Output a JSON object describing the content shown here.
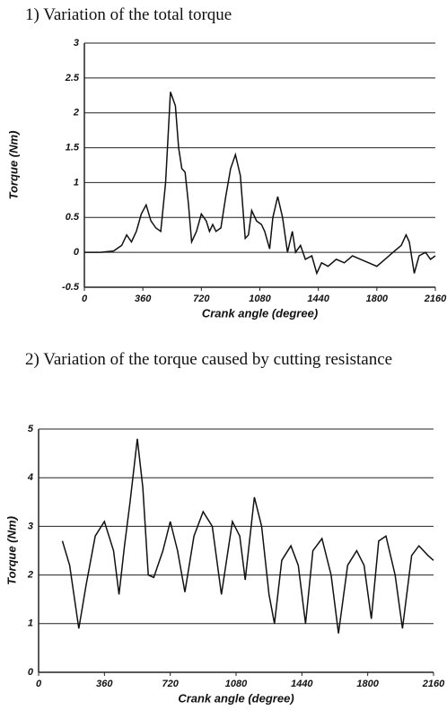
{
  "chart_data": [
    {
      "type": "line",
      "title": "1) Variation of the total torque",
      "x_label": "Crank angle (degree)",
      "y_label": "Torque (Nm)",
      "color": "#111111",
      "grid": true,
      "xlim": [
        0,
        2160
      ],
      "xticks": [
        0,
        360,
        720,
        1080,
        1440,
        1800,
        2160
      ],
      "ylim": [
        -0.5,
        3
      ],
      "yticks": [
        -0.5,
        0,
        0.5,
        1,
        1.5,
        2,
        2.5,
        3
      ],
      "x": [
        0,
        100,
        180,
        230,
        260,
        290,
        320,
        350,
        380,
        410,
        440,
        470,
        500,
        530,
        560,
        580,
        600,
        620,
        640,
        660,
        690,
        720,
        750,
        770,
        790,
        810,
        840,
        870,
        900,
        930,
        960,
        990,
        1010,
        1030,
        1060,
        1090,
        1110,
        1140,
        1160,
        1190,
        1220,
        1250,
        1280,
        1300,
        1330,
        1360,
        1400,
        1430,
        1460,
        1500,
        1550,
        1600,
        1650,
        1700,
        1750,
        1800,
        1850,
        1900,
        1950,
        1980,
        2000,
        2030,
        2060,
        2100,
        2130,
        2160
      ],
      "values": [
        0,
        0,
        0.02,
        0.1,
        0.25,
        0.15,
        0.3,
        0.55,
        0.68,
        0.45,
        0.35,
        0.3,
        1.0,
        2.3,
        2.1,
        1.5,
        1.2,
        1.15,
        0.7,
        0.15,
        0.3,
        0.55,
        0.45,
        0.3,
        0.4,
        0.3,
        0.35,
        0.8,
        1.2,
        1.4,
        1.1,
        0.2,
        0.25,
        0.6,
        0.45,
        0.4,
        0.3,
        0.05,
        0.5,
        0.8,
        0.5,
        0,
        0.3,
        0,
        0.1,
        -0.1,
        -0.05,
        -0.3,
        -0.15,
        -0.2,
        -0.1,
        -0.15,
        -0.05,
        -0.1,
        -0.15,
        -0.2,
        -0.1,
        0,
        0.1,
        0.25,
        0.15,
        -0.3,
        -0.05,
        0,
        -0.1,
        -0.05
      ]
    },
    {
      "type": "line",
      "title": "2) Variation of the torque caused by cutting resistance",
      "x_label": "Crank angle (degree)",
      "y_label": "Torque (Nm)",
      "color": "#111111",
      "grid": true,
      "xlim": [
        0,
        2160
      ],
      "xticks": [
        0,
        360,
        720,
        1080,
        1440,
        1800,
        2160
      ],
      "ylim": [
        0,
        5
      ],
      "yticks": [
        0,
        1,
        2,
        3,
        4,
        5
      ],
      "x": [
        130,
        170,
        220,
        260,
        310,
        360,
        410,
        440,
        470,
        500,
        540,
        570,
        600,
        630,
        680,
        720,
        760,
        800,
        850,
        900,
        950,
        1000,
        1060,
        1100,
        1130,
        1180,
        1220,
        1260,
        1290,
        1330,
        1380,
        1420,
        1460,
        1500,
        1550,
        1600,
        1640,
        1690,
        1740,
        1780,
        1820,
        1860,
        1900,
        1950,
        1990,
        2040,
        2080,
        2130,
        2160
      ],
      "values": [
        2.7,
        2.2,
        0.9,
        1.8,
        2.8,
        3.1,
        2.5,
        1.6,
        2.6,
        3.5,
        4.8,
        3.8,
        2.0,
        1.95,
        2.5,
        3.1,
        2.5,
        1.65,
        2.8,
        3.3,
        3.0,
        1.6,
        3.1,
        2.8,
        1.9,
        3.6,
        3.0,
        1.6,
        1.0,
        2.3,
        2.6,
        2.2,
        1.0,
        2.5,
        2.75,
        2.0,
        0.8,
        2.2,
        2.5,
        2.2,
        1.1,
        2.7,
        2.8,
        2.0,
        0.9,
        2.4,
        2.6,
        2.4,
        2.3
      ]
    }
  ]
}
